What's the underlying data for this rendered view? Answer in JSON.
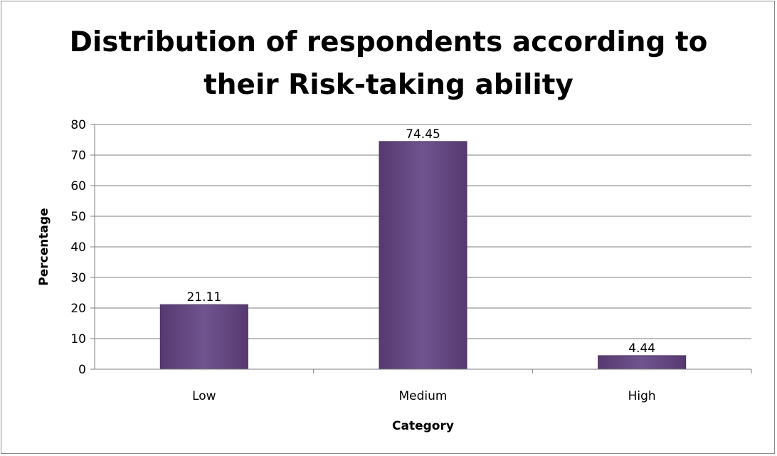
{
  "chart_data": {
    "type": "bar",
    "title_line1": "Distribution of respondents according to",
    "title_line2": "their Risk-taking ability",
    "xlabel": "Category",
    "ylabel": "Percentage",
    "categories": [
      "Low",
      "Medium",
      "High"
    ],
    "values": [
      21.11,
      74.45,
      4.44
    ],
    "ylim": [
      0,
      80
    ],
    "ytick_step": 10,
    "grid": true,
    "legend": "none",
    "bar_color": "#6b4e8a",
    "bar_edge_color": "#4a3262",
    "grid_color": "#7f7f7f"
  }
}
